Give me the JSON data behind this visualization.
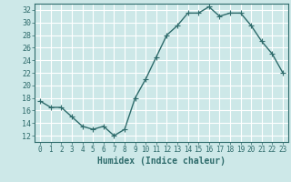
{
  "x": [
    0,
    1,
    2,
    3,
    4,
    5,
    6,
    7,
    8,
    9,
    10,
    11,
    12,
    13,
    14,
    15,
    16,
    17,
    18,
    19,
    20,
    21,
    22,
    23
  ],
  "y": [
    17.5,
    16.5,
    16.5,
    15.0,
    13.5,
    13.0,
    13.5,
    12.0,
    13.0,
    18.0,
    21.0,
    24.5,
    28.0,
    29.5,
    31.5,
    31.5,
    32.5,
    31.0,
    31.5,
    31.5,
    29.5,
    27.0,
    25.0,
    22.0
  ],
  "line_color": "#2e6b6b",
  "marker": "+",
  "markersize": 4,
  "linewidth": 1.0,
  "xlabel": "Humidex (Indice chaleur)",
  "xlim": [
    -0.5,
    23.5
  ],
  "ylim": [
    11,
    33
  ],
  "yticks": [
    12,
    14,
    16,
    18,
    20,
    22,
    24,
    26,
    28,
    30,
    32
  ],
  "xticks": [
    0,
    1,
    2,
    3,
    4,
    5,
    6,
    7,
    8,
    9,
    10,
    11,
    12,
    13,
    14,
    15,
    16,
    17,
    18,
    19,
    20,
    21,
    22,
    23
  ],
  "bg_color": "#cde8e8",
  "grid_color": "#ffffff",
  "tick_color": "#2e6b6b",
  "label_color": "#2e6b6b",
  "axis_color": "#2e6b6b",
  "xlabel_fontsize": 7,
  "tick_fontsize": 5.5,
  "ytick_fontsize": 6
}
